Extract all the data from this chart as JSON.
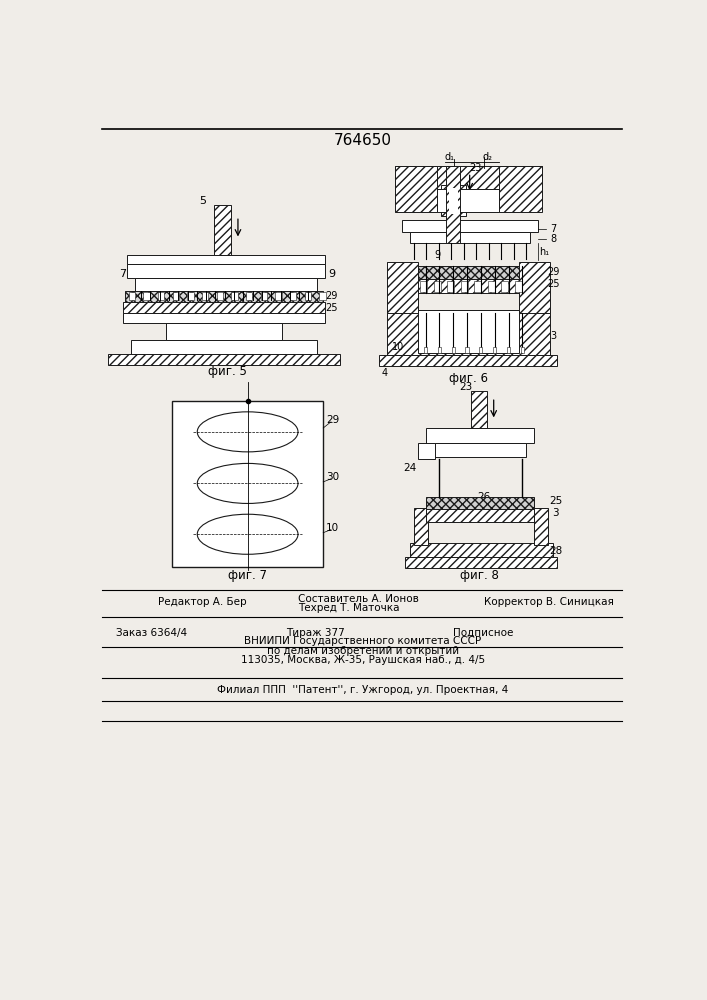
{
  "patent_number": "764650",
  "bg_color": "#f0ede8",
  "line_color": "#1a1a1a",
  "fig5_caption": "фиг. 5",
  "fig6_caption": "фиг. 6",
  "fig7_caption": "фиг. 7",
  "fig8_caption": "фиг. 8"
}
